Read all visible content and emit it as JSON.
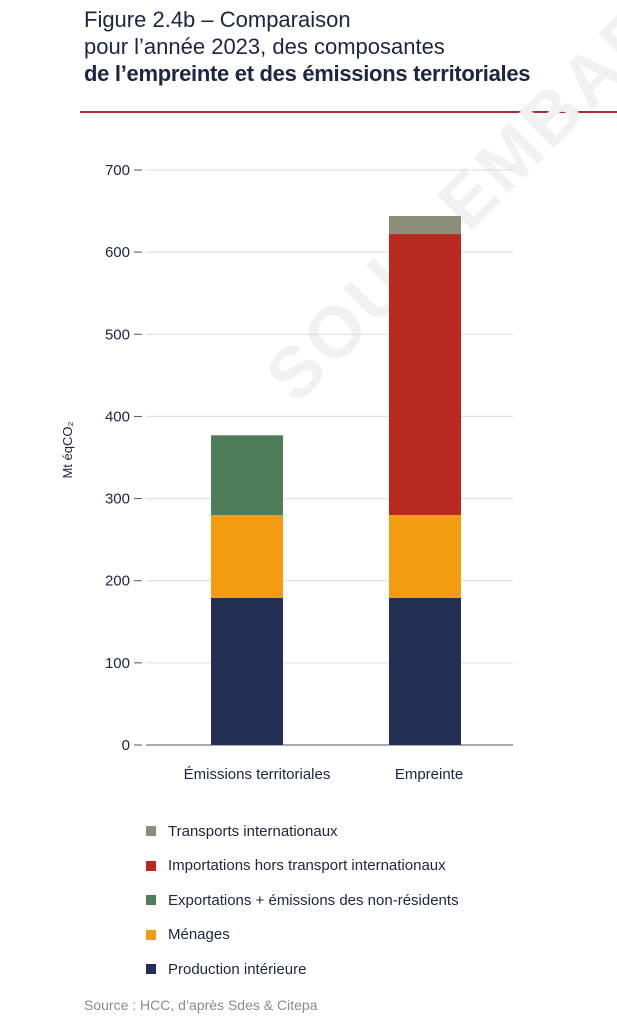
{
  "header": {
    "title_line1": "Figure 2.4b – Comparaison",
    "title_line2": "pour l’année 2023, des composantes",
    "title_line3": "de l’empreinte et des émissions territoriales"
  },
  "watermark": "SOUS EMBARGO",
  "chart_data": {
    "type": "bar",
    "stacked": true,
    "categories": [
      "Émissions territoriales",
      "Empreinte"
    ],
    "ylabel": "Mt éqCO₂",
    "ylim": [
      0,
      700
    ],
    "yticks": [
      0,
      100,
      200,
      300,
      400,
      500,
      600,
      700
    ],
    "grid": true,
    "legend_position": "bottom",
    "series": [
      {
        "name": "Production intérieure",
        "color": "#232f55",
        "values": [
          179,
          179
        ]
      },
      {
        "name": "Ménages",
        "color": "#f39c12",
        "values": [
          101,
          101
        ]
      },
      {
        "name": "Exportations + émissions des non-résidents",
        "color": "#4f7d5a",
        "values": [
          97,
          0
        ]
      },
      {
        "name": "Importations hors transport internationaux",
        "color": "#b8291f",
        "values": [
          0,
          342
        ]
      },
      {
        "name": "Transports internationaux",
        "color": "#8e8c7a",
        "values": [
          0,
          22
        ]
      }
    ]
  },
  "legend": [
    {
      "label": "Transports internationaux",
      "color": "#8e8c7a"
    },
    {
      "label": "Importations hors transport internationaux",
      "color": "#b8291f"
    },
    {
      "label": "Exportations + émissions des non-résidents",
      "color": "#4f7d5a"
    },
    {
      "label": "Ménages",
      "color": "#f39c12"
    },
    {
      "label": "Production intérieure",
      "color": "#232f55"
    }
  ],
  "source": "Source : HCC, d’après Sdes & Citepa"
}
